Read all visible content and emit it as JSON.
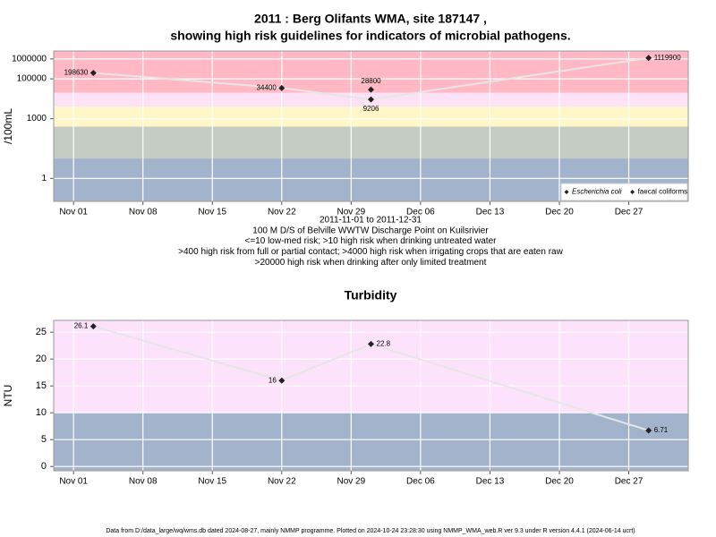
{
  "chart_data": [
    {
      "type": "line",
      "title": "2011 : Berg Olifants WMA, site 187147 ,",
      "subtitle": "showing high risk guidelines for indicators of microbial pathogens.",
      "y_label": "/100mL",
      "y_scale": "log",
      "xlim": [
        "2011-10-30",
        "2012-01-02"
      ],
      "xticks": [
        {
          "value": "2011-11-01",
          "label": "Nov 01"
        },
        {
          "value": "2011-11-08",
          "label": "Nov 08"
        },
        {
          "value": "2011-11-15",
          "label": "Nov 15"
        },
        {
          "value": "2011-11-22",
          "label": "Nov 22"
        },
        {
          "value": "2011-11-29",
          "label": "Nov 29"
        },
        {
          "value": "2011-12-06",
          "label": "Dec 06"
        },
        {
          "value": "2011-12-13",
          "label": "Dec 13"
        },
        {
          "value": "2011-12-20",
          "label": "Dec 20"
        },
        {
          "value": "2011-12-27",
          "label": "Dec 27"
        }
      ],
      "ylim": [
        0.07,
        2500000
      ],
      "yticks": [
        1,
        1000,
        100000,
        1000000
      ],
      "grid": true,
      "risk_bands": {
        "thresholds": [
          10,
          400,
          4000,
          20000
        ],
        "colors": [
          "#a3b3cc",
          "#c4ccc4",
          "#fff7c8",
          "#fde2f6",
          "#ffb8c4"
        ]
      },
      "notes": [
        "2011-11-01 to 2011-12-31",
        "100 M D/S of Belville WWTW Discharge Point on Kuilsrivier",
        "<=10 low-med risk; >10 high risk when drinking untreated water",
        ">400 high risk from full or partial contact; >4000 high risk when irrigating crops that are eaten raw",
        ">20000 high risk when drinking after only limited treatment"
      ],
      "legend": "bottom right",
      "series": [
        {
          "name": "Escherichia coli",
          "color": "#222222",
          "line_color": "#e6e6e6",
          "x": [
            "2011-11-03",
            "2011-11-22",
            "2011-12-01",
            "2011-12-29"
          ],
          "values": [
            198630,
            34400,
            9206,
            1119900
          ]
        },
        {
          "name": "faecal coliforms",
          "color": "#222222",
          "line_color": "#e6e6e6",
          "x": [
            "2011-12-01"
          ],
          "values": [
            28800
          ]
        }
      ]
    },
    {
      "type": "line",
      "title": "Turbidity",
      "y_label": "NTU",
      "xlim": [
        "2011-10-30",
        "2012-01-02"
      ],
      "xticks": [
        {
          "value": "2011-11-01",
          "label": "Nov 01"
        },
        {
          "value": "2011-11-08",
          "label": "Nov 08"
        },
        {
          "value": "2011-11-15",
          "label": "Nov 15"
        },
        {
          "value": "2011-11-22",
          "label": "Nov 22"
        },
        {
          "value": "2011-11-29",
          "label": "Nov 29"
        },
        {
          "value": "2011-12-06",
          "label": "Dec 06"
        },
        {
          "value": "2011-12-13",
          "label": "Dec 13"
        },
        {
          "value": "2011-12-20",
          "label": "Dec 20"
        },
        {
          "value": "2011-12-27",
          "label": "Dec 27"
        }
      ],
      "ylim": [
        -0.8,
        27.2
      ],
      "yticks": [
        0,
        5,
        10,
        15,
        20,
        25
      ],
      "grid": true,
      "risk_bands": {
        "thresholds": [
          10
        ],
        "colors": [
          "#a3b3cc",
          "#fde2fc"
        ]
      },
      "series": [
        {
          "name": "Turbidity",
          "color": "#222222",
          "line_color": "#e6e6e6",
          "x": [
            "2011-11-03",
            "2011-11-22",
            "2011-12-01",
            "2011-12-29"
          ],
          "values": [
            26.1,
            16,
            22.8,
            6.71
          ]
        }
      ]
    }
  ],
  "footer": "Data from D:/data_large/wq/wms.db dated 2024-08-27, mainly NMMP programme. Plotted on 2024-10-24 23:28:30 using NMMP_WMA_web.R ver 9.3 under R version 4.4.1 (2024-06-14 ucrt)"
}
